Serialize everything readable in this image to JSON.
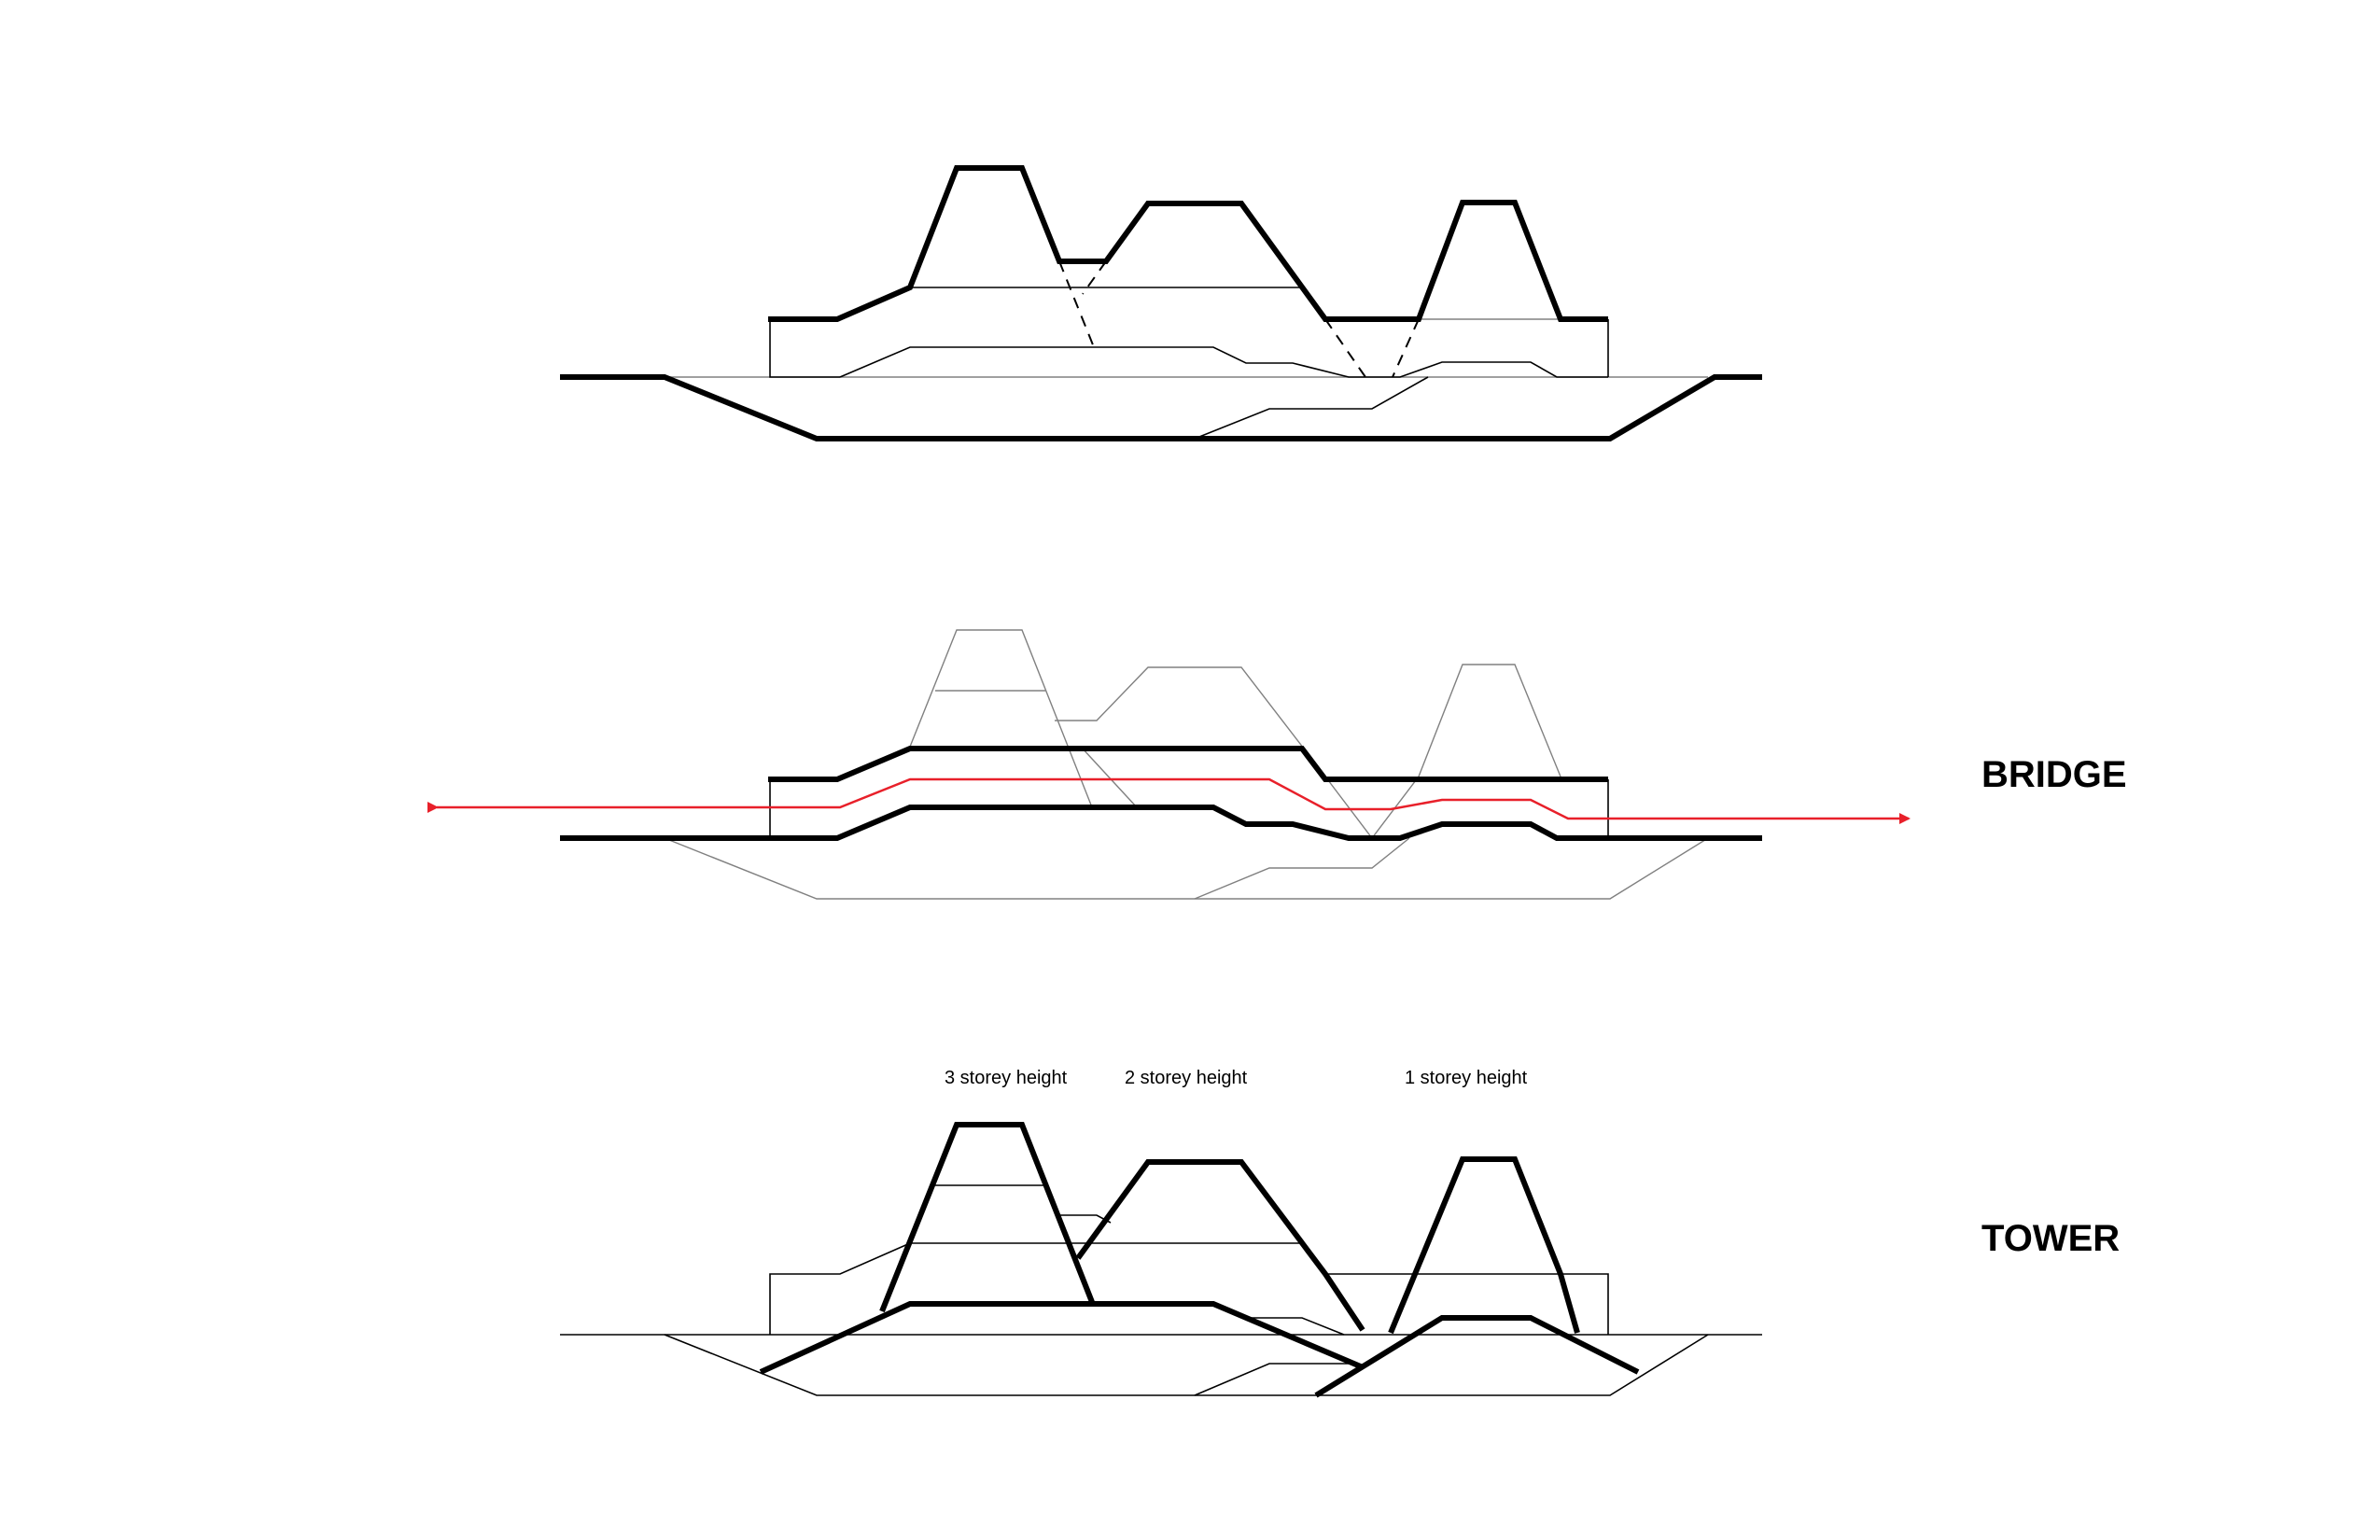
{
  "labels": {
    "bridge": "BRIDGE",
    "tower": "TOWER",
    "height_3": "3 storey height",
    "height_2": "2 storey height",
    "height_1": "1 storey height"
  },
  "colors": {
    "line": "#000000",
    "faint": "#808080",
    "path_arrow": "#e8202a",
    "background": "#ffffff"
  }
}
